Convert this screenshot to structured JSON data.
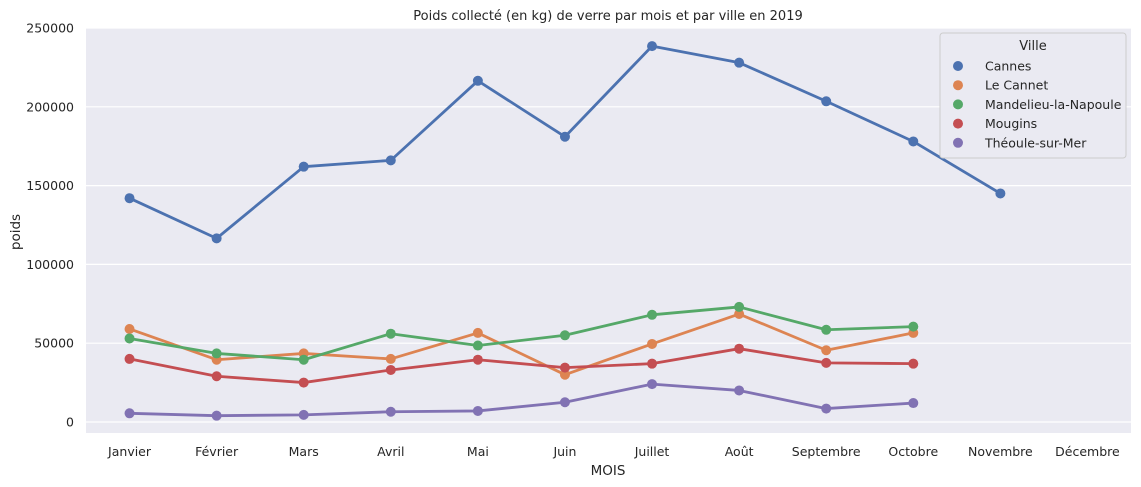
{
  "chart_data": {
    "type": "line",
    "title": "Poids collecté (en kg) de verre par mois et par ville en 2019",
    "xlabel": "MOIS",
    "ylabel": "poids",
    "categories": [
      "Janvier",
      "Février",
      "Mars",
      "Avril",
      "Mai",
      "Juin",
      "Juillet",
      "Août",
      "Septembre",
      "Octobre",
      "Novembre",
      "Décembre"
    ],
    "ylim": [
      -7000,
      250000
    ],
    "yticks": [
      "0",
      "50000",
      "100000",
      "150000",
      "200000",
      "250000"
    ],
    "grid": true,
    "legend": {
      "title": "Ville",
      "placement": "top-right"
    },
    "series": [
      {
        "name": "Cannes",
        "color": "#4c72b0",
        "values": [
          142000,
          116500,
          162000,
          166000,
          216500,
          181000,
          238500,
          228000,
          203500,
          178000,
          145000,
          null
        ]
      },
      {
        "name": "Le Cannet",
        "color": "#dd8452",
        "values": [
          59000,
          39500,
          43500,
          40000,
          56500,
          30000,
          49500,
          68500,
          45500,
          56500,
          null,
          null
        ]
      },
      {
        "name": "Mandelieu-la-Napoule",
        "color": "#55a868",
        "values": [
          53000,
          43500,
          39500,
          56000,
          48500,
          55000,
          68000,
          73000,
          58500,
          60500,
          null,
          null
        ]
      },
      {
        "name": "Mougins",
        "color": "#c44e52",
        "values": [
          40000,
          29000,
          25000,
          33000,
          39500,
          34500,
          37000,
          46500,
          37500,
          37000,
          null,
          null
        ]
      },
      {
        "name": "Théoule-sur-Mer",
        "color": "#8172b3",
        "values": [
          5500,
          4000,
          4500,
          6500,
          7000,
          12500,
          24000,
          20000,
          8500,
          12000,
          null,
          null
        ]
      }
    ]
  }
}
